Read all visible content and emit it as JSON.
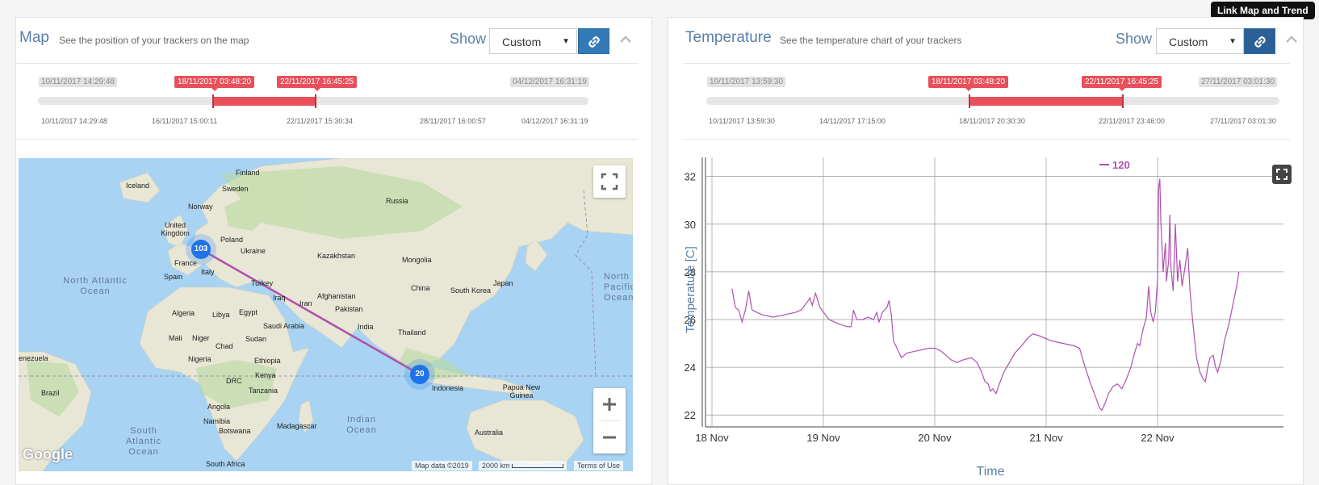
{
  "tooltip": "Link Map and Trend",
  "map_panel": {
    "title": "Map",
    "subtitle": "See the position of your trackers on the map",
    "show_label": "Show",
    "show_value": "Custom",
    "slider": {
      "start_label": "10/11/2017 14:29:48",
      "end_label": "04/12/2017 16:31:19",
      "sel_start_label": "18/11/2017 03:48:20",
      "sel_end_label": "22/11/2017 16:45:25",
      "selection_start_fraction": 0.318,
      "selection_end_fraction": 0.503,
      "ticks": [
        "10/11/2017 14:29:48",
        "16/11/2017 15:00:11",
        "22/11/2017 15:30:34",
        "28/11/2017 16:00:57",
        "04/12/2017 16:31:19"
      ]
    },
    "map": {
      "countries": [
        "Finland",
        "Sweden",
        "Norway",
        "Iceland",
        "United Kingdom",
        "Poland",
        "Ukraine",
        "Russia",
        "Kazakhstan",
        "Mongolia",
        "France",
        "Spain",
        "Italy",
        "Turkey",
        "Iraq",
        "Iran",
        "Afghanistan",
        "Pakistan",
        "China",
        "South Korea",
        "Japan",
        "Algeria",
        "Libya",
        "Egypt",
        "Saudi Arabia",
        "India",
        "Thailand",
        "Mali",
        "Niger",
        "Chad",
        "Sudan",
        "Nigeria",
        "Ethiopia",
        "DRC",
        "Kenya",
        "Tanzania",
        "Angola",
        "Namibia",
        "Botswana",
        "Madagascar",
        "South Africa",
        "Brazil",
        "enezuela",
        "Indonesia",
        "Papua New Guinea",
        "Australia"
      ],
      "oceans": [
        "North Atlantic Ocean",
        "South Atlantic Ocean",
        "Indian Ocean",
        "North Pacific Ocean"
      ],
      "clusters": [
        {
          "count": "103"
        },
        {
          "count": "20"
        }
      ],
      "google_logo": "Google",
      "attribution": "Map data ©2019",
      "scale": "2000 km",
      "terms": "Terms of Use"
    }
  },
  "temp_panel": {
    "title": "Temperature",
    "subtitle": "See the temperature chart of your trackers",
    "show_label": "Show",
    "show_value": "Custom",
    "slider": {
      "start_label": "10/11/2017 13:59:30",
      "end_label": "27/11/2017 03:01:30",
      "sel_start_label": "18/11/2017 03:48:20",
      "sel_end_label": "22/11/2017 16:45:25",
      "selection_start_fraction": 0.459,
      "selection_end_fraction": 0.727,
      "ticks": [
        "10/11/2017 13:59:30",
        "14/11/2017 17:15:00",
        "18/11/2017 20:30:30",
        "22/11/2017 23:46:00",
        "27/11/2017 03:01:30"
      ]
    }
  },
  "chart_data": {
    "type": "line",
    "title": "",
    "xlabel": "Time",
    "ylabel": "Temperature [C]",
    "x_ticks": [
      "18 Nov",
      "19 Nov",
      "20 Nov",
      "21 Nov",
      "22 Nov"
    ],
    "ylim": [
      21.5,
      32.8
    ],
    "y_ticks": [
      22,
      24,
      26,
      28,
      30,
      32
    ],
    "legend_position": "top-center",
    "color": "#b04fb0",
    "series": [
      {
        "name": "120",
        "x_unit": "days since 18 Nov 00:00",
        "points": [
          [
            0.18,
            27.3
          ],
          [
            0.21,
            26.5
          ],
          [
            0.24,
            26.4
          ],
          [
            0.27,
            25.9
          ],
          [
            0.3,
            26.4
          ],
          [
            0.33,
            27.2
          ],
          [
            0.36,
            26.4
          ],
          [
            0.45,
            26.2
          ],
          [
            0.55,
            26.1
          ],
          [
            0.65,
            26.2
          ],
          [
            0.75,
            26.3
          ],
          [
            0.8,
            26.4
          ],
          [
            0.85,
            26.7
          ],
          [
            0.88,
            26.9
          ],
          [
            0.9,
            26.6
          ],
          [
            0.93,
            27.1
          ],
          [
            0.97,
            26.5
          ],
          [
            1.05,
            26.0
          ],
          [
            1.15,
            25.8
          ],
          [
            1.22,
            25.7
          ],
          [
            1.25,
            25.7
          ],
          [
            1.27,
            26.4
          ],
          [
            1.3,
            26.0
          ],
          [
            1.35,
            26.0
          ],
          [
            1.4,
            26.1
          ],
          [
            1.45,
            26.0
          ],
          [
            1.48,
            26.3
          ],
          [
            1.5,
            25.9
          ],
          [
            1.53,
            26.3
          ],
          [
            1.57,
            26.5
          ],
          [
            1.59,
            26.8
          ],
          [
            1.61,
            26.2
          ],
          [
            1.63,
            25.1
          ],
          [
            1.67,
            24.7
          ],
          [
            1.7,
            24.4
          ],
          [
            1.75,
            24.6
          ],
          [
            1.85,
            24.7
          ],
          [
            1.95,
            24.8
          ],
          [
            2.0,
            24.8
          ],
          [
            2.05,
            24.7
          ],
          [
            2.1,
            24.5
          ],
          [
            2.15,
            24.3
          ],
          [
            2.2,
            24.2
          ],
          [
            2.25,
            24.3
          ],
          [
            2.33,
            24.4
          ],
          [
            2.38,
            24.2
          ],
          [
            2.42,
            23.8
          ],
          [
            2.45,
            23.4
          ],
          [
            2.48,
            23.3
          ],
          [
            2.5,
            23.0
          ],
          [
            2.52,
            23.1
          ],
          [
            2.55,
            22.9
          ],
          [
            2.58,
            23.3
          ],
          [
            2.62,
            23.8
          ],
          [
            2.67,
            24.2
          ],
          [
            2.72,
            24.6
          ],
          [
            2.78,
            24.9
          ],
          [
            2.83,
            25.2
          ],
          [
            2.88,
            25.4
          ],
          [
            2.95,
            25.3
          ],
          [
            3.05,
            25.1
          ],
          [
            3.15,
            25.0
          ],
          [
            3.25,
            24.9
          ],
          [
            3.3,
            24.8
          ],
          [
            3.35,
            24.0
          ],
          [
            3.4,
            23.3
          ],
          [
            3.44,
            22.8
          ],
          [
            3.48,
            22.3
          ],
          [
            3.5,
            22.2
          ],
          [
            3.53,
            22.5
          ],
          [
            3.56,
            22.9
          ],
          [
            3.6,
            23.2
          ],
          [
            3.64,
            23.3
          ],
          [
            3.68,
            23.1
          ],
          [
            3.72,
            23.5
          ],
          [
            3.76,
            24.0
          ],
          [
            3.8,
            24.7
          ],
          [
            3.82,
            25.0
          ],
          [
            3.84,
            24.9
          ],
          [
            3.87,
            25.6
          ],
          [
            3.9,
            26.1
          ],
          [
            3.92,
            27.4
          ],
          [
            3.94,
            26.3
          ],
          [
            3.96,
            25.9
          ],
          [
            3.98,
            26.3
          ],
          [
            4.0,
            27.7
          ],
          [
            4.01,
            31.5
          ],
          [
            4.02,
            31.9
          ],
          [
            4.03,
            30.1
          ],
          [
            4.05,
            28.0
          ],
          [
            4.07,
            29.2
          ],
          [
            4.08,
            27.6
          ],
          [
            4.1,
            28.5
          ],
          [
            4.11,
            30.4
          ],
          [
            4.12,
            28.2
          ],
          [
            4.14,
            27.2
          ],
          [
            4.16,
            30.0
          ],
          [
            4.18,
            27.6
          ],
          [
            4.2,
            28.5
          ],
          [
            4.22,
            27.4
          ],
          [
            4.25,
            28.3
          ],
          [
            4.27,
            29.0
          ],
          [
            4.29,
            27.3
          ],
          [
            4.31,
            26.2
          ],
          [
            4.33,
            25.3
          ],
          [
            4.35,
            24.4
          ],
          [
            4.38,
            23.8
          ],
          [
            4.41,
            23.5
          ],
          [
            4.43,
            23.4
          ],
          [
            4.45,
            24.0
          ],
          [
            4.47,
            24.4
          ],
          [
            4.5,
            24.5
          ],
          [
            4.52,
            24.0
          ],
          [
            4.54,
            23.8
          ],
          [
            4.57,
            24.3
          ],
          [
            4.6,
            25.1
          ],
          [
            4.64,
            25.8
          ],
          [
            4.68,
            26.7
          ],
          [
            4.71,
            27.4
          ],
          [
            4.73,
            28.0
          ]
        ]
      }
    ]
  }
}
